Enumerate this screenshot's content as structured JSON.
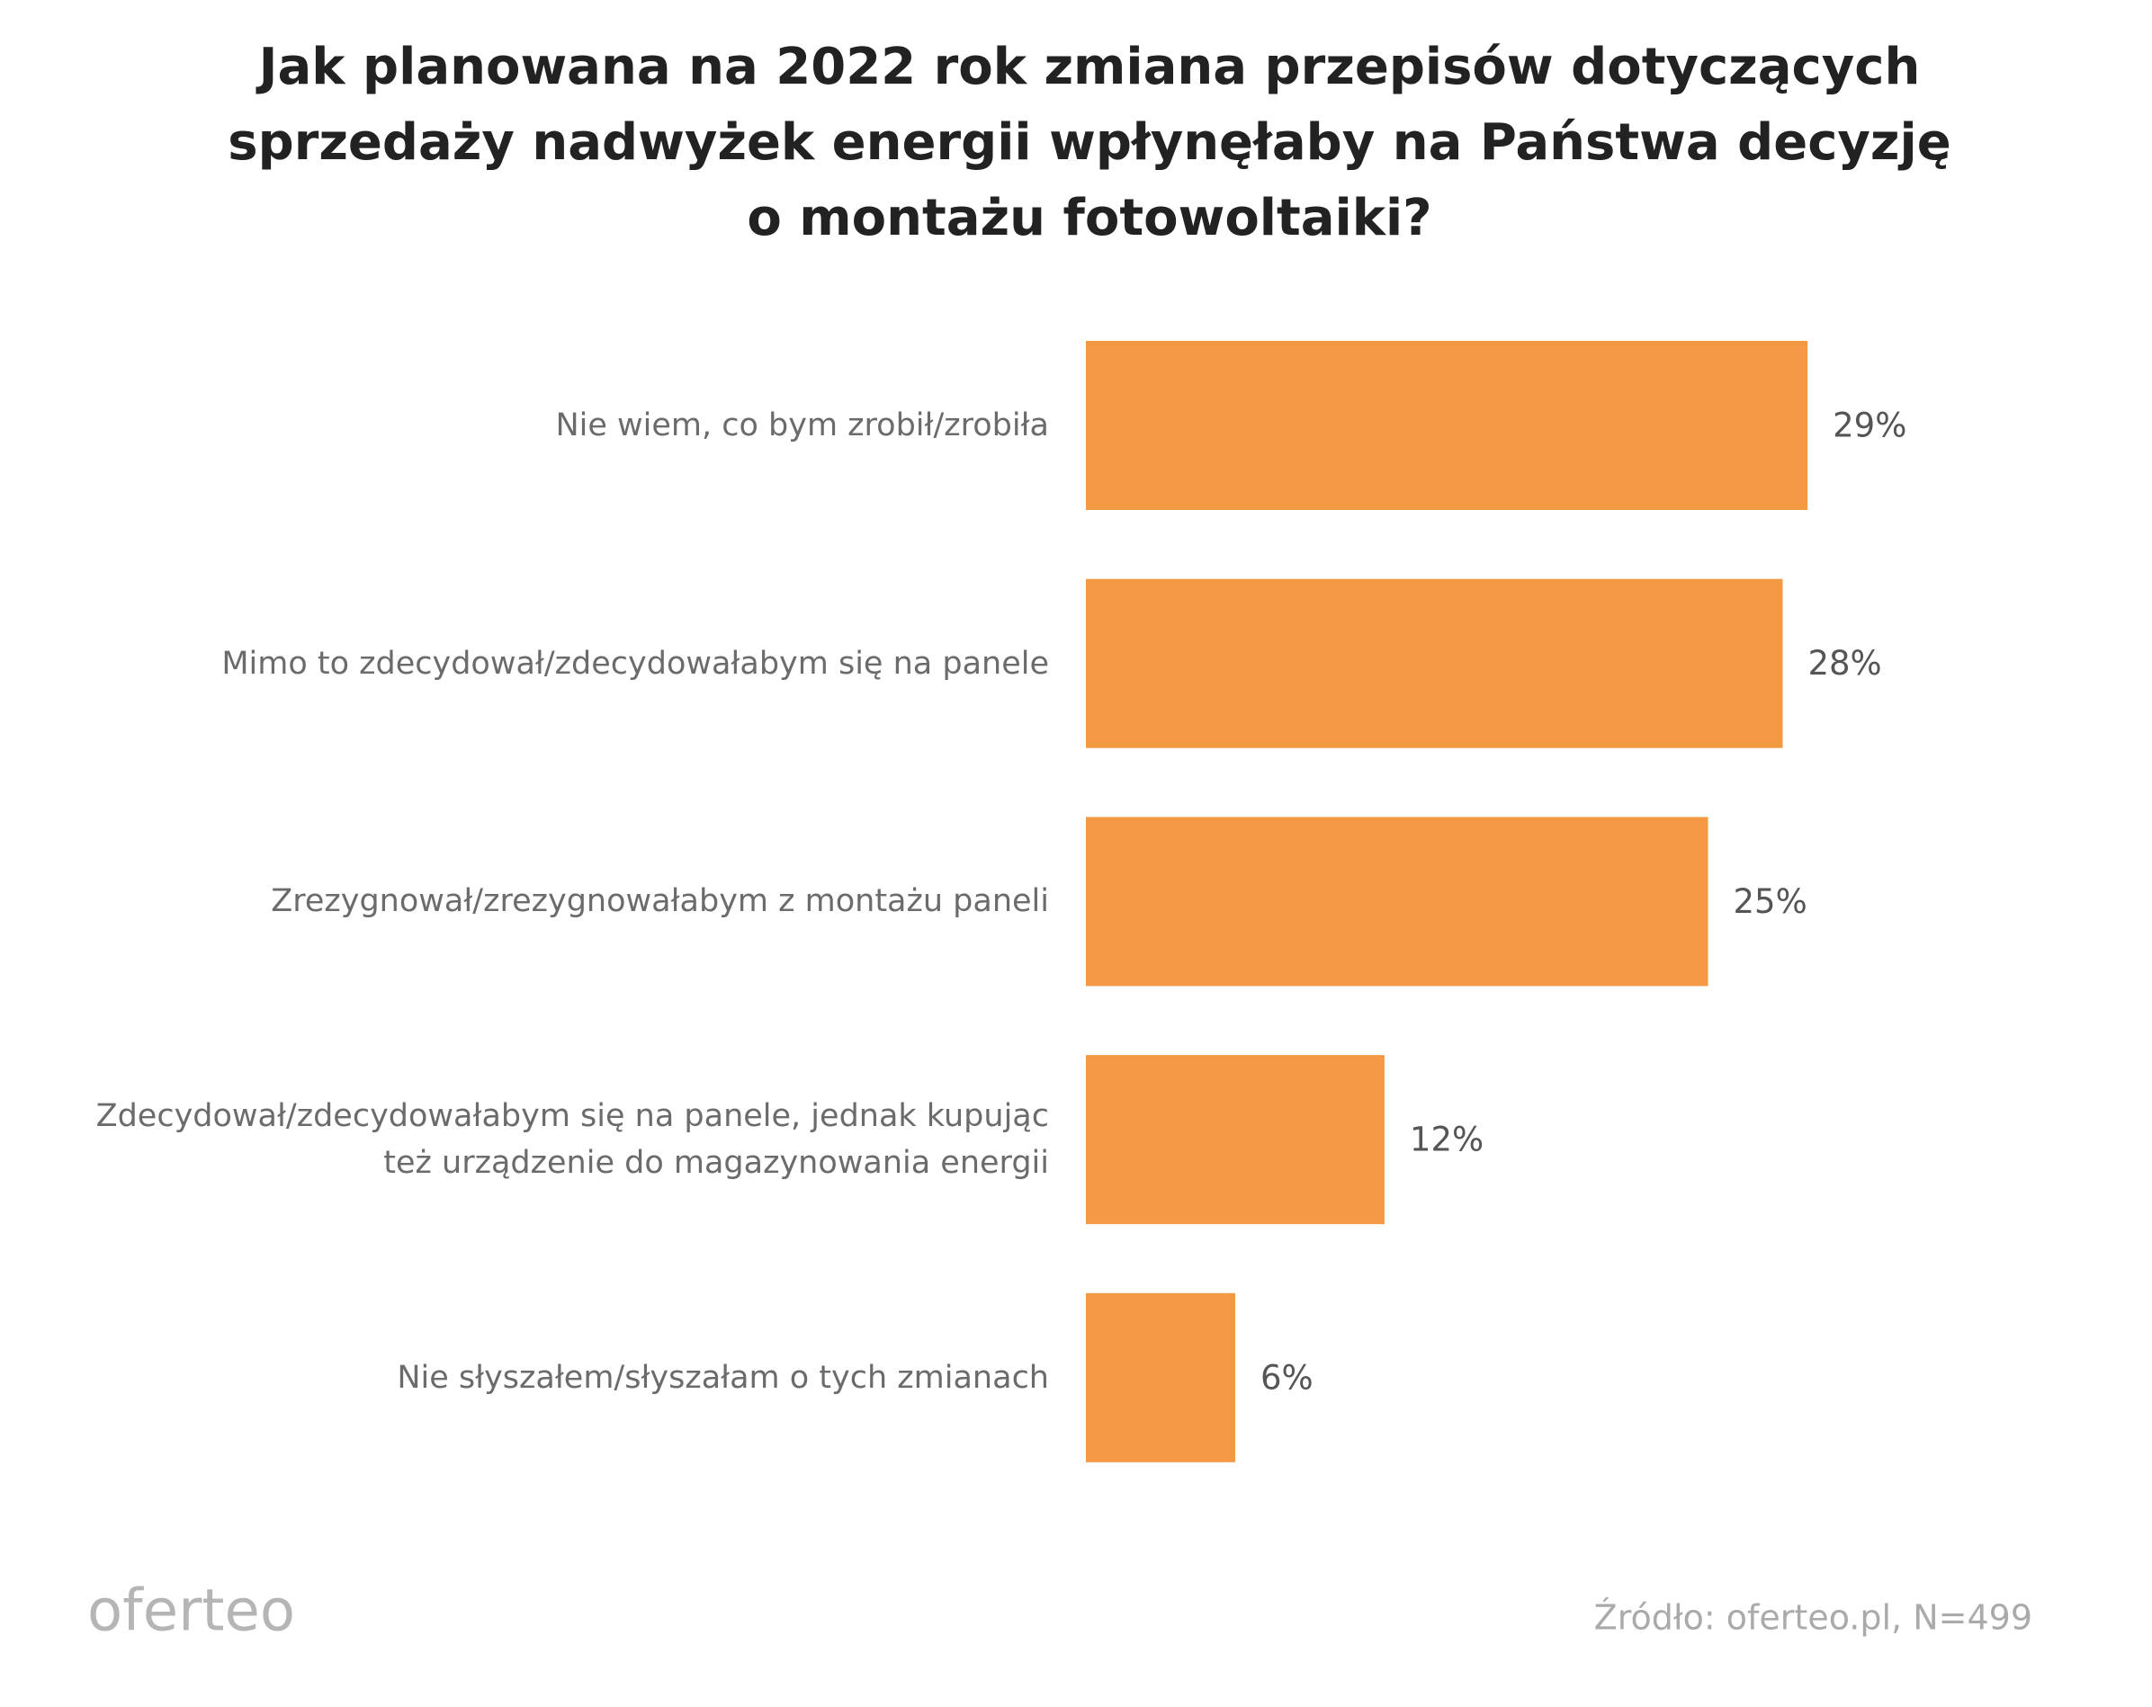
{
  "chart_data": {
    "type": "barh",
    "title": [
      "Jak planowana na 2022 rok zmiana przepisów dotyczących",
      "sprzedaży nadwyżek energii wpłynęłaby na Państwa decyzję",
      "o montażu fotowoltaiki?"
    ],
    "categories": [
      "Nie wiem, co bym zrobił/zrobiła",
      "Mimo to zdecydował/zdecydowałabym się na panele",
      "Zrezygnował/zrezygnowałabym z montażu paneli",
      "Zdecydował/zdecydowałabym się na panele, jednak kupując też urządzenie do magazynowania energii",
      "Nie słyszałem/słyszałam o tych zmianach"
    ],
    "values": [
      29,
      28,
      25,
      12,
      6
    ],
    "value_labels": [
      "29%",
      "28%",
      "25%",
      "12%",
      "6%"
    ],
    "color": "#f39843",
    "logo": "oferteo",
    "source": "Źródło: oferteo.pl, N=499"
  }
}
